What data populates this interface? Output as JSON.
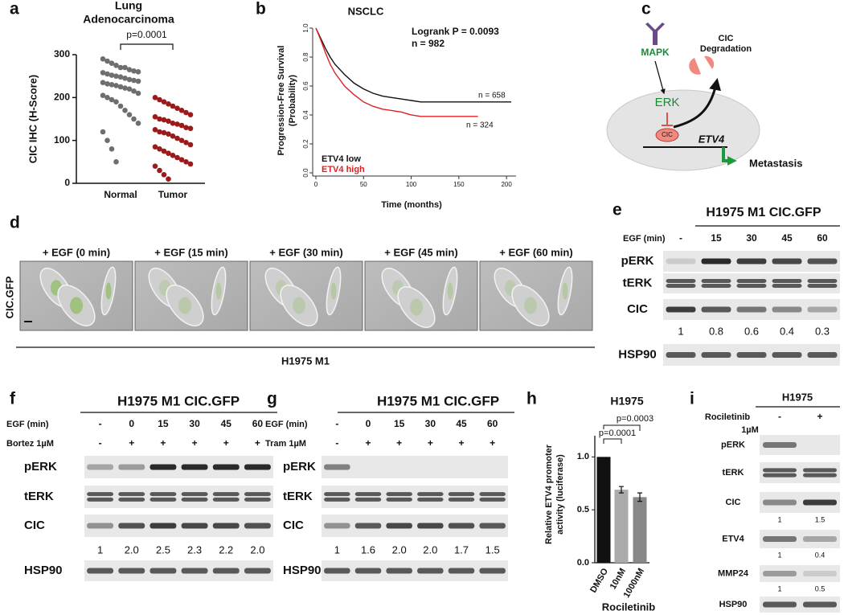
{
  "letters": [
    "a",
    "b",
    "c",
    "d",
    "e",
    "f",
    "g",
    "h",
    "i"
  ],
  "chart_data": [
    {
      "type": "strip",
      "title": [
        "Lung",
        "Adenocarcinoma"
      ],
      "y_label": "CIC IHC (H-Score)",
      "categories": [
        "Normal",
        "Tumor"
      ],
      "colors": [
        "#6e6e6e",
        "#9b1b1b"
      ],
      "values": [
        [
          290,
          285,
          280,
          275,
          270,
          270,
          265,
          262,
          260,
          258,
          255,
          252,
          250,
          248,
          245,
          242,
          240,
          238,
          235,
          232,
          230,
          228,
          225,
          222,
          220,
          215,
          210,
          205,
          200,
          195,
          190,
          180,
          170,
          160,
          150,
          140,
          120,
          100,
          80,
          50
        ],
        [
          200,
          195,
          190,
          185,
          180,
          175,
          170,
          165,
          160,
          155,
          150,
          148,
          145,
          140,
          138,
          135,
          130,
          128,
          125,
          120,
          118,
          115,
          110,
          105,
          100,
          95,
          90,
          85,
          80,
          75,
          70,
          65,
          60,
          55,
          50,
          45,
          40,
          30,
          20,
          10
        ]
      ],
      "ylim": [
        0,
        300
      ],
      "yticks": [
        0,
        100,
        200,
        300
      ],
      "annotation": "p=0.0001"
    },
    {
      "type": "line",
      "title": "NSCLC",
      "x_label": "Time (months)",
      "y_label": [
        "Progression-Free Survival",
        "(Probability)"
      ],
      "annotations": [
        "Logrank P = 0.0093",
        "n = 982",
        "n = 658",
        "n = 324"
      ],
      "x": [
        0,
        5,
        10,
        15,
        20,
        30,
        40,
        50,
        60,
        70,
        80,
        90,
        100,
        110,
        120,
        140,
        160,
        170,
        205
      ],
      "series": [
        {
          "name": "ETV4 low",
          "color": "#111111",
          "values": [
            1.0,
            0.93,
            0.86,
            0.8,
            0.75,
            0.68,
            0.62,
            0.58,
            0.55,
            0.53,
            0.52,
            0.51,
            0.5,
            0.49,
            0.49,
            0.49,
            0.49,
            0.49,
            0.49
          ]
        },
        {
          "name": "ETV4 high",
          "color": "#e02020",
          "values": [
            1.0,
            0.92,
            0.83,
            0.75,
            0.69,
            0.6,
            0.54,
            0.49,
            0.46,
            0.44,
            0.43,
            0.42,
            0.4,
            0.39,
            0.39,
            0.39,
            0.39,
            0.39,
            null
          ]
        }
      ],
      "xlim": [
        0,
        210
      ],
      "ylim": [
        0,
        1
      ],
      "xticks": [
        0,
        50,
        100,
        150,
        200
      ],
      "yticks": [
        {
          "value": 0,
          "label": "0.0"
        },
        0.2,
        0.4,
        0.6,
        0.8,
        {
          "value": 1,
          "label": "1.0"
        }
      ]
    },
    {
      "type": "bar",
      "title": "H1975",
      "y_label": [
        "Relative ETV4 promoter",
        "activity (luciferase)"
      ],
      "x_label": "Rociletinib",
      "categories": [
        "DMSO",
        "10nM",
        "1000nM"
      ],
      "values": [
        1.0,
        0.69,
        0.62
      ],
      "errors": [
        null,
        0.03,
        0.04
      ],
      "colors": [
        "#111111",
        "#aaaaaa",
        "#888888"
      ],
      "ylim": [
        0,
        1.2
      ],
      "yticks": [
        {
          "value": 0,
          "label": "0.0"
        },
        0.5,
        {
          "value": 1,
          "label": "1.0"
        }
      ],
      "annotations": [
        "p=0.0001",
        "p=0.0003"
      ]
    }
  ],
  "diagram": {
    "mapk": "MAPK",
    "degradation": [
      "CIC",
      "Degradation"
    ],
    "erk": "ERK",
    "cic": "CIC",
    "etv4": "ETV4",
    "metastasis": "Metastasis"
  },
  "panel_d": {
    "side_label": "CIC.GFP",
    "frames": [
      "+ EGF (0 min)",
      "+ EGF (15 min)",
      "+ EGF (30 min)",
      "+ EGF (45 min)",
      "+ EGF (60 min)"
    ],
    "cell_line": "H1975 M1"
  },
  "blots": [
    {
      "title": "H1975 M1 CIC.GFP",
      "conditions": [
        {
          "label": "EGF (min)",
          "lanes": [
            "-",
            "15",
            "30",
            "45",
            "60"
          ]
        }
      ],
      "rows": [
        {
          "name": "pERK"
        },
        {
          "name": "tERK"
        },
        {
          "name": "CIC",
          "quant": [
            "1",
            "0.8",
            "0.6",
            "0.4",
            "0.3"
          ]
        },
        {
          "name": "HSP90"
        }
      ]
    },
    {
      "title": "H1975 M1 CIC.GFP",
      "conditions": [
        {
          "label": "EGF (min)",
          "lanes": [
            "-",
            "0",
            "15",
            "30",
            "45",
            "60"
          ]
        },
        {
          "label": "Bortez 1µM",
          "lanes": [
            "-",
            "+",
            "+",
            "+",
            "+",
            "+"
          ]
        }
      ],
      "rows": [
        {
          "name": "pERK"
        },
        {
          "name": "tERK"
        },
        {
          "name": "CIC",
          "quant": [
            "1",
            "2.0",
            "2.5",
            "2.3",
            "2.2",
            "2.0"
          ]
        },
        {
          "name": "HSP90"
        }
      ]
    },
    {
      "title": "H1975 M1 CIC.GFP",
      "conditions": [
        {
          "label": "EGF (min)",
          "lanes": [
            "-",
            "0",
            "15",
            "30",
            "45",
            "60"
          ]
        },
        {
          "label": "Tram 1µM",
          "lanes": [
            "-",
            "+",
            "+",
            "+",
            "+",
            "+"
          ]
        }
      ],
      "rows": [
        {
          "name": "pERK"
        },
        {
          "name": "tERK"
        },
        {
          "name": "CIC",
          "quant": [
            "1",
            "1.6",
            "2.0",
            "2.0",
            "1.7",
            "1.5"
          ]
        },
        {
          "name": "HSP90"
        }
      ]
    },
    {
      "title": "H1975",
      "conditions": [
        {
          "label": [
            "Rociletinib",
            "1µM"
          ],
          "lanes": [
            "-",
            "+"
          ]
        }
      ],
      "rows": [
        {
          "name": "pERK"
        },
        {
          "name": "tERK"
        },
        {
          "name": "CIC",
          "quant": [
            "1",
            "1.5"
          ]
        },
        {
          "name": "ETV4",
          "quant": [
            "1",
            "0.4"
          ]
        },
        {
          "name": "MMP24",
          "quant": [
            "1",
            "0.5"
          ]
        },
        {
          "name": "HSP90"
        }
      ]
    }
  ]
}
